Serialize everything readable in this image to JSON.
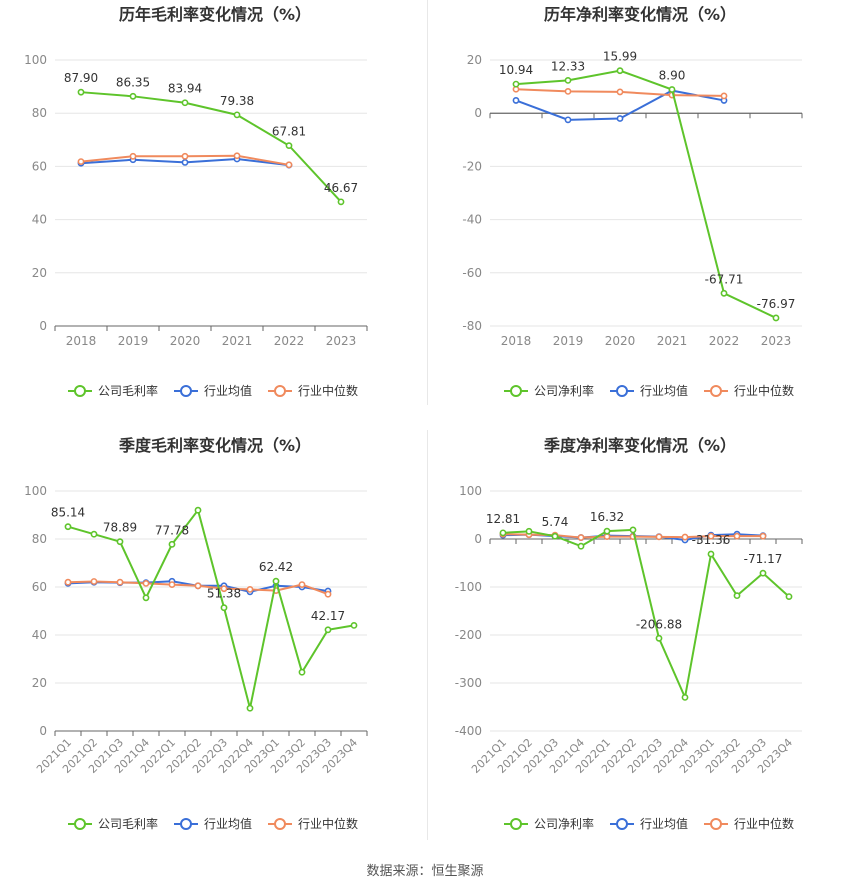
{
  "source": "数据来源：恒生聚源",
  "colors": {
    "company": "#5ec42b",
    "avg": "#3a6fd8",
    "median": "#f08a5d"
  },
  "chart_data": [
    {
      "type": "line",
      "title": "历年毛利率变化情况（%）",
      "categories": [
        "2018",
        "2019",
        "2020",
        "2021",
        "2022",
        "2023"
      ],
      "ylim": [
        0,
        100
      ],
      "yticks": [
        0,
        20,
        40,
        60,
        80,
        100
      ],
      "grid": true,
      "legend": "bottom",
      "series": [
        {
          "name": "公司毛利率",
          "values": [
            87.9,
            86.35,
            83.94,
            79.38,
            67.81,
            46.67
          ],
          "labels": [
            "87.90",
            "86.35",
            "83.94",
            "79.38",
            "67.81",
            "46.67"
          ]
        },
        {
          "name": "行业均值",
          "values": [
            61.2,
            62.5,
            61.5,
            62.8,
            60.5,
            null
          ]
        },
        {
          "name": "行业中位数",
          "values": [
            61.8,
            63.8,
            63.8,
            64.0,
            60.6,
            null
          ]
        }
      ]
    },
    {
      "type": "line",
      "title": "历年净利率变化情况（%）",
      "categories": [
        "2018",
        "2019",
        "2020",
        "2021",
        "2022",
        "2023"
      ],
      "ylim": [
        -80,
        20
      ],
      "yticks": [
        -80,
        -60,
        -40,
        -20,
        0,
        20
      ],
      "grid": true,
      "legend": "bottom",
      "series": [
        {
          "name": "公司净利率",
          "values": [
            10.94,
            12.33,
            15.99,
            8.9,
            -67.71,
            -76.97
          ],
          "labels": [
            "10.94",
            "12.33",
            "15.99",
            "8.90",
            "-67.71",
            "-76.97"
          ]
        },
        {
          "name": "行业均值",
          "values": [
            4.8,
            -2.5,
            -2.0,
            8.5,
            4.8,
            null
          ]
        },
        {
          "name": "行业中位数",
          "values": [
            9.0,
            8.2,
            8.0,
            6.8,
            6.5,
            null
          ]
        }
      ]
    },
    {
      "type": "line",
      "title": "季度毛利率变化情况（%）",
      "categories": [
        "2021Q1",
        "2021Q2",
        "2021Q3",
        "2021Q4",
        "2022Q1",
        "2022Q2",
        "2022Q3",
        "2022Q4",
        "2023Q1",
        "2023Q2",
        "2023Q3",
        "2023Q4"
      ],
      "ylim": [
        0,
        100
      ],
      "yticks": [
        0,
        20,
        40,
        60,
        80,
        100
      ],
      "grid": true,
      "legend": "bottom",
      "series": [
        {
          "name": "公司毛利率",
          "values": [
            85.14,
            82.0,
            78.89,
            55.5,
            77.78,
            92.0,
            51.38,
            9.5,
            62.42,
            24.5,
            42.17,
            44.0
          ],
          "labels": [
            "85.14",
            null,
            "78.89",
            null,
            "77.78",
            null,
            "51.38",
            null,
            "62.42",
            null,
            "42.17",
            null
          ]
        },
        {
          "name": "行业均值",
          "values": [
            61.5,
            62.0,
            61.8,
            61.8,
            62.4,
            60.5,
            60.5,
            58.0,
            60.5,
            60.0,
            58.3,
            null
          ]
        },
        {
          "name": "行业中位数",
          "values": [
            62.0,
            62.3,
            62.0,
            61.5,
            61.0,
            60.5,
            59.3,
            59.0,
            58.5,
            61.0,
            57.0,
            null
          ]
        }
      ]
    },
    {
      "type": "line",
      "title": "季度净利率变化情况（%）",
      "categories": [
        "2021Q1",
        "2021Q2",
        "2021Q3",
        "2021Q4",
        "2022Q1",
        "2022Q2",
        "2022Q3",
        "2022Q4",
        "2023Q1",
        "2023Q2",
        "2023Q3",
        "2023Q4"
      ],
      "ylim": [
        -400,
        100
      ],
      "yticks": [
        -400,
        -300,
        -200,
        -100,
        0,
        100
      ],
      "grid": true,
      "legend": "bottom",
      "series": [
        {
          "name": "公司净利率",
          "values": [
            12.81,
            16.0,
            5.74,
            -15.0,
            16.32,
            19.0,
            -206.88,
            -330.0,
            -31.36,
            -118.0,
            -71.17,
            -120.0
          ],
          "labels": [
            "12.81",
            null,
            "5.74",
            null,
            "16.32",
            null,
            "-206.88",
            null,
            "-31.36",
            null,
            "-71.17",
            null
          ]
        },
        {
          "name": "行业均值",
          "values": [
            8.0,
            9.0,
            6.0,
            3.0,
            7.0,
            6.0,
            5.0,
            -2.0,
            8.0,
            10.0,
            7.0,
            null
          ]
        },
        {
          "name": "行业中位数",
          "values": [
            10.0,
            9.0,
            8.0,
            3.0,
            5.0,
            5.0,
            4.5,
            4.0,
            6.0,
            6.0,
            6.0,
            null
          ]
        }
      ]
    }
  ]
}
